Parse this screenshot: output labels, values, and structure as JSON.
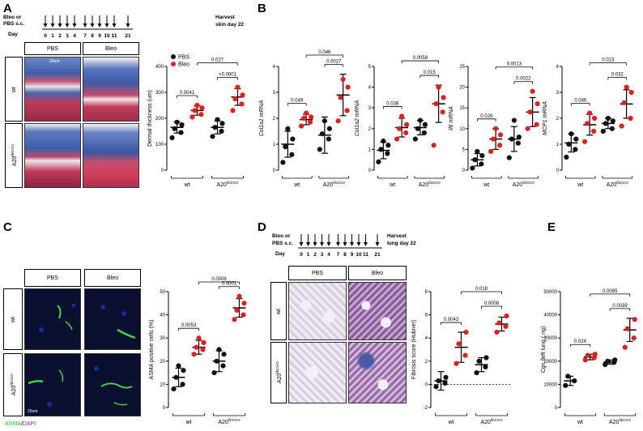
{
  "panels": {
    "A": {
      "letter": "A",
      "timeline": {
        "left_label_1": "Bleo or",
        "left_label_2": "PBS s.c.",
        "day_label": "Day",
        "days": [
          "0",
          "1",
          "2",
          "3",
          "4",
          "7",
          "8",
          "9",
          "10",
          "11",
          "21"
        ],
        "harvest_1": "Harvest",
        "harvest_2": "skin day 22"
      },
      "col_headers": [
        "PBS",
        "Bleo"
      ],
      "row_labels": [
        "wt",
        "A20"
      ],
      "row_sup": "fibCKO",
      "scalebar": "20um"
    },
    "B": {
      "letter": "B"
    },
    "C": {
      "letter": "C",
      "col_headers": [
        "PBS",
        "Bleo"
      ],
      "row_labels": [
        "wt",
        "A20"
      ],
      "row_sup": "fibCKO",
      "scalebar": "20um",
      "stain_1": "ASMA",
      "stain_sep": "/",
      "stain_2": "DAPI"
    },
    "D": {
      "letter": "D",
      "timeline": {
        "left_label_1": "Bleo or",
        "left_label_2": "PBS s.c.",
        "day_label": "Day",
        "days": [
          "0",
          "1",
          "2",
          "3",
          "4",
          "7",
          "8",
          "9",
          "10",
          "11",
          "21"
        ],
        "harvest_1": "Harvest",
        "harvest_2": "lung day 22"
      },
      "col_headers": [
        "PBS",
        "Bleo"
      ],
      "row_labels": [
        "wt",
        "A20"
      ],
      "row_sup": "fibCKO"
    },
    "E": {
      "letter": "E"
    }
  },
  "colors": {
    "pbs": "#111111",
    "bleo": "#e0201c",
    "masson_blue": "#3f5fa8",
    "masson_red": "#c03a57",
    "fluor_bg": "#0a0f2e",
    "asma_green": "#3cd24a",
    "lung_stain": "#8a5b9a"
  },
  "chart_data": [
    {
      "id": "A-dermal",
      "type": "scatter",
      "ylabel": "Dermal thickness (um)",
      "ylim": [
        0,
        400
      ],
      "yticks": [
        0,
        100,
        200,
        300,
        400
      ],
      "group_labels": [
        {
          "text": "wt",
          "sup": ""
        },
        {
          "text": "A20",
          "sup": "fibCKO"
        }
      ],
      "legend": [
        {
          "name": "PBS",
          "color": "#111111"
        },
        {
          "name": "Bleo",
          "color": "#e0201c"
        }
      ],
      "legend_placement": "top-left",
      "groups": [
        {
          "treat": "PBS",
          "points": [
            125,
            145,
            160,
            175,
            185
          ],
          "mean": 165,
          "sd": 22
        },
        {
          "treat": "Bleo",
          "points": [
            205,
            215,
            230,
            240,
            250
          ],
          "mean": 230,
          "sd": 18
        },
        {
          "treat": "PBS",
          "points": [
            130,
            150,
            165,
            180,
            195
          ],
          "mean": 165,
          "sd": 25
        },
        {
          "treat": "Bleo",
          "points": [
            230,
            255,
            275,
            290,
            320
          ],
          "mean": 282,
          "sd": 32
        }
      ],
      "comparisons": [
        {
          "from": 0,
          "to": 1,
          "label": "0.0041",
          "level": 0
        },
        {
          "from": 2,
          "to": 3,
          "label": "<0.0001",
          "level": 0
        },
        {
          "from": 1,
          "to": 3,
          "label": "0.027",
          "level": 1
        }
      ]
    },
    {
      "id": "B-col1a1",
      "type": "scatter",
      "ylabel": "Col1a1 mRNA",
      "ylabel_italic": true,
      "ylim": [
        0,
        4
      ],
      "yticks": [
        0,
        1,
        2,
        3,
        4
      ],
      "group_labels": [
        {
          "text": "wt",
          "sup": ""
        },
        {
          "text": "A20",
          "sup": "fibCKO"
        }
      ],
      "groups": [
        {
          "treat": "PBS",
          "points": [
            0.3,
            0.6,
            0.9,
            1.2,
            1.6
          ],
          "mean": 1.0,
          "sd": 0.5
        },
        {
          "treat": "Bleo",
          "points": [
            1.7,
            1.85,
            2.0,
            2.05,
            2.2
          ],
          "mean": 1.95,
          "sd": 0.2
        },
        {
          "treat": "PBS",
          "points": [
            0.8,
            1.2,
            1.4,
            1.6,
            1.9
          ],
          "mean": 1.35,
          "sd": 0.7
        },
        {
          "treat": "Bleo",
          "points": [
            1.9,
            2.3,
            2.8,
            3.2,
            3.5
          ],
          "mean": 2.9,
          "sd": 0.8
        }
      ],
      "comparisons": [
        {
          "from": 0,
          "to": 1,
          "label": "0.049",
          "level": 0
        },
        {
          "from": 2,
          "to": 3,
          "label": "0.0027",
          "level": 0
        },
        {
          "from": 1,
          "to": 3,
          "label": "0.046",
          "level": 1
        }
      ]
    },
    {
      "id": "B-col1a2",
      "type": "scatter",
      "ylabel": "Col1a2 mRNA",
      "ylabel_italic": true,
      "ylim": [
        0,
        5
      ],
      "yticks": [
        0,
        1,
        2,
        3,
        4,
        5
      ],
      "group_labels": [
        {
          "text": "wt",
          "sup": ""
        },
        {
          "text": "A20",
          "sup": "fibCKO"
        }
      ],
      "groups": [
        {
          "treat": "PBS",
          "points": [
            0.4,
            0.8,
            1.0,
            1.2,
            1.4
          ],
          "mean": 0.95,
          "sd": 0.4
        },
        {
          "treat": "Bleo",
          "points": [
            1.5,
            1.8,
            2.0,
            2.2,
            2.6
          ],
          "mean": 2.05,
          "sd": 0.45
        },
        {
          "treat": "PBS",
          "points": [
            1.5,
            1.8,
            2.0,
            2.2,
            2.4
          ],
          "mean": 2.05,
          "sd": 0.35
        },
        {
          "treat": "Bleo",
          "points": [
            1.2,
            2.8,
            3.2,
            3.5,
            4.0
          ],
          "mean": 3.2,
          "sd": 0.9
        }
      ],
      "comparisons": [
        {
          "from": 0,
          "to": 1,
          "label": "0.038",
          "level": 0
        },
        {
          "from": 2,
          "to": 3,
          "label": "0.015",
          "level": 0
        },
        {
          "from": 1,
          "to": 3,
          "label": "0.0058",
          "level": 1
        }
      ]
    },
    {
      "id": "B-il6",
      "type": "scatter",
      "ylabel": "Il6 mRNA",
      "ylabel_italic": true,
      "ylim": [
        0,
        25
      ],
      "yticks": [
        0,
        5,
        10,
        15,
        20,
        25
      ],
      "group_labels": [
        {
          "text": "wt",
          "sup": ""
        },
        {
          "text": "A20",
          "sup": "fibCKO"
        }
      ],
      "groups": [
        {
          "treat": "PBS",
          "points": [
            0.5,
            1.5,
            2.5,
            3.5,
            4.5
          ],
          "mean": 2.5,
          "sd": 1.5
        },
        {
          "treat": "Bleo",
          "points": [
            4.5,
            6.0,
            7.5,
            8.5,
            10.0
          ],
          "mean": 7.5,
          "sd": 2.5
        },
        {
          "treat": "PBS",
          "points": [
            3.0,
            6.5,
            7.5,
            8.0,
            12.0
          ],
          "mean": 7.5,
          "sd": 3.0
        },
        {
          "treat": "Bleo",
          "points": [
            10.0,
            11.0,
            14.0,
            16.0,
            19.0
          ],
          "mean": 14.0,
          "sd": 3.5
        }
      ],
      "comparisons": [
        {
          "from": 0,
          "to": 1,
          "label": "0.029",
          "level": 0
        },
        {
          "from": 2,
          "to": 3,
          "label": "0.0022",
          "level": 0
        },
        {
          "from": 1,
          "to": 3,
          "label": "0.0013",
          "level": 1
        }
      ]
    },
    {
      "id": "B-mcp1",
      "type": "scatter",
      "ylabel": "MCP1 mRNA",
      "ylabel_italic": true,
      "ylim": [
        0,
        4
      ],
      "yticks": [
        0,
        1,
        2,
        3,
        4
      ],
      "group_labels": [
        {
          "text": "wt",
          "sup": ""
        },
        {
          "text": "A20",
          "sup": "fibCKO"
        }
      ],
      "groups": [
        {
          "treat": "PBS",
          "points": [
            0.5,
            0.8,
            1.0,
            1.2,
            1.4
          ],
          "mean": 1.05,
          "sd": 0.35
        },
        {
          "treat": "Bleo",
          "points": [
            1.1,
            1.5,
            1.8,
            2.0,
            2.2
          ],
          "mean": 1.75,
          "sd": 0.4
        },
        {
          "treat": "PBS",
          "points": [
            1.5,
            1.6,
            1.8,
            1.9,
            2.0
          ],
          "mean": 1.8,
          "sd": 0.2
        },
        {
          "treat": "Bleo",
          "points": [
            1.7,
            2.0,
            2.6,
            3.0,
            3.2
          ],
          "mean": 2.55,
          "sd": 0.55
        }
      ],
      "comparisons": [
        {
          "from": 0,
          "to": 1,
          "label": "0.046",
          "level": 0
        },
        {
          "from": 2,
          "to": 3,
          "label": "0.032",
          "level": 0
        },
        {
          "from": 1,
          "to": 3,
          "label": "0.023",
          "level": 1
        }
      ]
    },
    {
      "id": "C-asma",
      "type": "scatter",
      "ylabel": "ASMA positive cells (%)",
      "ylim": [
        0,
        50
      ],
      "yticks": [
        0,
        10,
        20,
        30,
        40,
        50
      ],
      "group_labels": [
        {
          "text": "wt",
          "sup": ""
        },
        {
          "text": "A20",
          "sup": "fibCKO"
        }
      ],
      "groups": [
        {
          "treat": "PBS",
          "points": [
            8,
            10,
            13,
            16,
            18
          ],
          "mean": 13,
          "sd": 4
        },
        {
          "treat": "Bleo",
          "points": [
            23,
            25,
            26,
            28,
            30
          ],
          "mean": 26,
          "sd": 3
        },
        {
          "treat": "PBS",
          "points": [
            15,
            18,
            20,
            23,
            25
          ],
          "mean": 20,
          "sd": 4.5
        },
        {
          "treat": "Bleo",
          "points": [
            38,
            40,
            42,
            45,
            48
          ],
          "mean": 43,
          "sd": 4
        }
      ],
      "comparisons": [
        {
          "from": 0,
          "to": 1,
          "label": "0.0053",
          "level": 0
        },
        {
          "from": 2,
          "to": 3,
          "label": "0.0001",
          "level": 0
        },
        {
          "from": 1,
          "to": 3,
          "label": "0.0008",
          "level": 1
        }
      ]
    },
    {
      "id": "D-fibrosis",
      "type": "scatter",
      "ylabel": "Fibrosis score (Hubner)",
      "ylim": [
        -2,
        8
      ],
      "yticks": [
        -2,
        0,
        2,
        4,
        6,
        8
      ],
      "zero_line": true,
      "group_labels": [
        {
          "text": "wt",
          "sup": ""
        },
        {
          "text": "A20",
          "sup": "fibCKO"
        }
      ],
      "groups": [
        {
          "treat": "PBS",
          "points": [
            -0.2,
            0.1,
            0.3,
            0.6
          ],
          "mean": 0.3,
          "sd": 0.8
        },
        {
          "treat": "Bleo",
          "points": [
            1.8,
            2.5,
            3.5,
            4.5
          ],
          "mean": 3.2,
          "sd": 1.3
        },
        {
          "treat": "PBS",
          "points": [
            1.0,
            1.5,
            2.0,
            2.3
          ],
          "mean": 1.7,
          "sd": 0.6
        },
        {
          "treat": "Bleo",
          "points": [
            4.5,
            5.0,
            5.3,
            5.9
          ],
          "mean": 5.2,
          "sd": 0.6
        }
      ],
      "comparisons": [
        {
          "from": 0,
          "to": 1,
          "label": "0.0043",
          "level": 0
        },
        {
          "from": 2,
          "to": 3,
          "label": "0.0008",
          "level": 0
        },
        {
          "from": 1,
          "to": 3,
          "label": "0.018",
          "level": 1
        }
      ]
    },
    {
      "id": "E-cgn",
      "type": "scatter",
      "ylabel": "Cgn /left lung ( ng)",
      "ylim": [
        0,
        50000
      ],
      "yticks": [
        0,
        10000,
        20000,
        30000,
        40000,
        50000
      ],
      "group_labels": [
        {
          "text": "wt",
          "sup": ""
        },
        {
          "text": "A20",
          "sup": "fibCKO"
        }
      ],
      "groups": [
        {
          "treat": "PBS",
          "points": [
            9500,
            11500,
            13500
          ],
          "mean": 11500,
          "sd": 2000
        },
        {
          "treat": "Bleo",
          "points": [
            20500,
            21500,
            22500,
            23000
          ],
          "mean": 21800,
          "sd": 1200
        },
        {
          "treat": "PBS",
          "points": [
            18500,
            19500,
            20000,
            20500
          ],
          "mean": 19600,
          "sd": 900
        },
        {
          "treat": "Bleo",
          "points": [
            26000,
            30000,
            34000,
            38000
          ],
          "mean": 33500,
          "sd": 5000
        }
      ],
      "comparisons": [
        {
          "from": 0,
          "to": 1,
          "label": "0.024",
          "level": 0
        },
        {
          "from": 2,
          "to": 3,
          "label": "0.0039",
          "level": 0
        },
        {
          "from": 1,
          "to": 3,
          "label": "0.0065",
          "level": 1
        }
      ]
    }
  ]
}
